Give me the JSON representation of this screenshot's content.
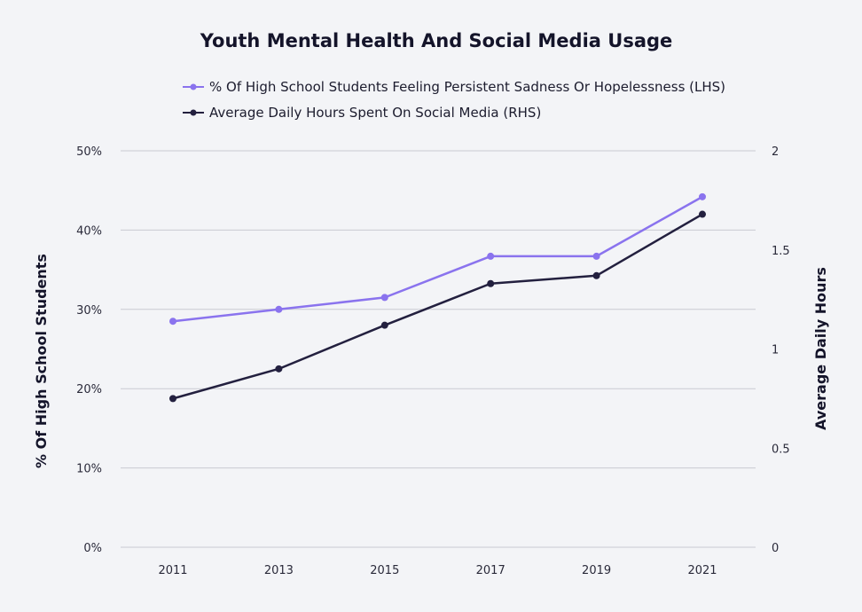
{
  "chart_data": {
    "type": "line",
    "title": "Youth Mental Health And Social Media Usage",
    "x": [
      "2011",
      "2013",
      "2015",
      "2017",
      "2019",
      "2021"
    ],
    "y_left": {
      "label": "% Of High School Students",
      "lim": [
        0,
        50
      ],
      "ticks": [
        0,
        10,
        20,
        30,
        40,
        50
      ],
      "tick_labels": [
        "0%",
        "10%",
        "20%",
        "30%",
        "40%",
        "50%"
      ]
    },
    "y_right": {
      "label": "Average Daily Hours",
      "lim": [
        0,
        2
      ],
      "ticks": [
        0,
        0.5,
        1,
        1.5,
        2
      ],
      "tick_labels": [
        "0",
        "0.5",
        "1",
        "1.5",
        "2"
      ]
    },
    "series": [
      {
        "name": "% Of High School Students Feeling Persistent Sadness Or Hopelessness (LHS)",
        "axis": "left",
        "color": "#8a73ee",
        "values": [
          28.5,
          30,
          31.5,
          36.7,
          36.7,
          44.2
        ]
      },
      {
        "name": "Average Daily Hours Spent On Social Media (RHS)",
        "axis": "right",
        "color": "#23203f",
        "values": [
          0.75,
          0.9,
          1.12,
          1.33,
          1.37,
          1.68
        ]
      }
    ],
    "grid": true,
    "legend_position": "top-center"
  }
}
